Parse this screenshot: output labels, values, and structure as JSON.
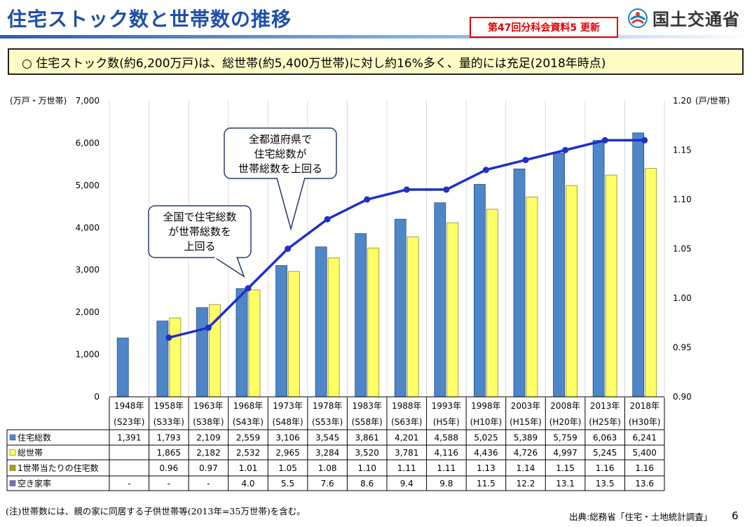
{
  "header": {
    "title": "住宅ストック数と世帯数の推移",
    "badge": "第47回分科会資料5 更新",
    "ministry": "国土交通省"
  },
  "summary": "○ 住宅ストック数(約6,200万戸)は、総世帯(約5,400万世帯)に対し約16%多く、量的には充足(2018年時点)",
  "chart_data": {
    "type": "bar",
    "title": "住宅ストック数と世帯数の推移",
    "left_axis": {
      "label": "(万戸・万世帯)",
      "range": [
        0,
        7000
      ],
      "ticks": [
        "0",
        "1,000",
        "2,000",
        "3,000",
        "4,000",
        "5,000",
        "6,000",
        "7,000"
      ]
    },
    "right_axis": {
      "label": "(戸/世帯)",
      "range": [
        0.9,
        1.2
      ],
      "ticks": [
        "0.90",
        "0.95",
        "1.00",
        "1.05",
        "1.10",
        "1.15",
        "1.20"
      ]
    },
    "categories": [
      "1948年",
      "1958年",
      "1963年",
      "1968年",
      "1973年",
      "1978年",
      "1983年",
      "1988年",
      "1993年",
      "1998年",
      "2003年",
      "2008年",
      "2013年",
      "2018年"
    ],
    "categories_era": [
      "(S23年)",
      "(S33年)",
      "(S38年)",
      "(S43年)",
      "(S48年)",
      "(S53年)",
      "(S58年)",
      "(S63年)",
      "(H5年)",
      "(H10年)",
      "(H15年)",
      "(H20年)",
      "(H25年)",
      "(H30年)"
    ],
    "series": [
      {
        "name": "住宅総数",
        "type": "bar",
        "axis": "left",
        "color": "#4e86c8",
        "values": [
          1391,
          1793,
          2109,
          2559,
          3106,
          3545,
          3861,
          4201,
          4588,
          5025,
          5389,
          5759,
          6063,
          6241
        ]
      },
      {
        "name": "総世帯",
        "type": "bar",
        "axis": "left",
        "color": "#ffff66",
        "values": [
          null,
          1865,
          2182,
          2532,
          2965,
          3284,
          3520,
          3781,
          4116,
          4436,
          4726,
          4997,
          5245,
          5400
        ]
      },
      {
        "name": "1世帯当たりの住宅数",
        "type": "line",
        "axis": "right",
        "color": "#1f2fc8",
        "values": [
          null,
          0.96,
          0.97,
          1.01,
          1.05,
          1.08,
          1.1,
          1.11,
          1.11,
          1.13,
          1.14,
          1.15,
          1.16,
          1.16
        ]
      },
      {
        "name": "空き家率",
        "type": "table",
        "color": "#6f6fc8",
        "values": [
          null,
          null,
          null,
          4.0,
          5.5,
          7.6,
          8.6,
          9.4,
          9.8,
          11.5,
          12.2,
          13.1,
          13.5,
          13.6
        ]
      }
    ],
    "table": {
      "rows": [
        {
          "label": "住宅総数",
          "cells": [
            "1,391",
            "1,793",
            "2,109",
            "2,559",
            "3,106",
            "3,545",
            "3,861",
            "4,201",
            "4,588",
            "5,025",
            "5,389",
            "5,759",
            "6,063",
            "6,241"
          ]
        },
        {
          "label": "総世帯",
          "cells": [
            "",
            "1,865",
            "2,182",
            "2,532",
            "2,965",
            "3,284",
            "3,520",
            "3,781",
            "4,116",
            "4,436",
            "4,726",
            "4,997",
            "5,245",
            "5,400"
          ]
        },
        {
          "label": "1世帯当たりの住宅数",
          "cells": [
            "",
            "0.96",
            "0.97",
            "1.01",
            "1.05",
            "1.08",
            "1.10",
            "1.11",
            "1.11",
            "1.13",
            "1.14",
            "1.15",
            "1.16",
            "1.16"
          ]
        },
        {
          "label": "空き家率",
          "cells": [
            "-",
            "-",
            "-",
            "4.0",
            "5.5",
            "7.6",
            "8.6",
            "9.4",
            "9.8",
            "11.5",
            "12.2",
            "13.1",
            "13.5",
            "13.6"
          ]
        }
      ]
    },
    "annotations": [
      {
        "text": [
          "全都道府県で",
          "住宅総数が",
          "世帯総数を上回る"
        ],
        "category": "1973年"
      },
      {
        "text": [
          "全国で住宅総数",
          "が世帯総数を",
          "上回る"
        ],
        "category": "1968年"
      }
    ]
  },
  "footer": {
    "note": "(注)世帯数には、親の家に同居する子供世帯等(2013年=35万世帯)を含む。",
    "source": "出典:総務省「住宅・土地統計調査」",
    "page": "6"
  }
}
